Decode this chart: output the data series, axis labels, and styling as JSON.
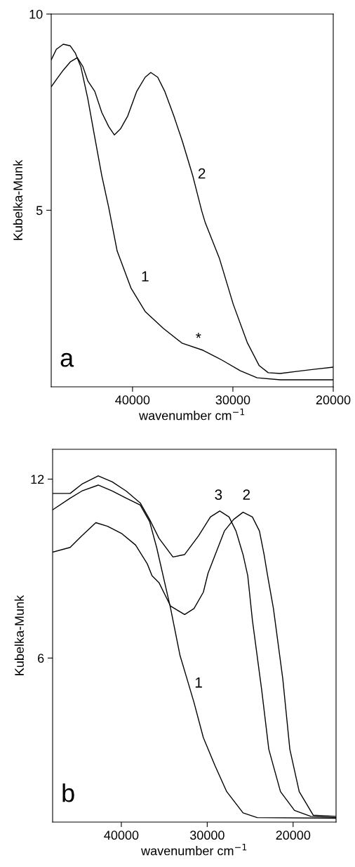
{
  "chart_data": [
    {
      "type": "line",
      "xlabel": "wavenumber cm$^{−1}$",
      "ylabel": "Kubelka-Munk",
      "xlim": [
        48100,
        20000
      ],
      "ylim": [
        0.5,
        10
      ],
      "xticks": [
        40000,
        30000,
        20000
      ],
      "yticks": [
        5,
        10
      ],
      "grid": false,
      "legend": false,
      "series": [
        {
          "name": "1",
          "color": "#000000",
          "x": [
            48080,
            47590,
            46900,
            46200,
            45710,
            45150,
            44460,
            43760,
            43060,
            42370,
            41530,
            40140,
            38740,
            36930,
            35050,
            32960,
            31080,
            29260,
            27590,
            25290,
            20000
          ],
          "values": [
            8.84,
            9.1,
            9.23,
            9.19,
            9.01,
            8.66,
            7.85,
            6.86,
            5.88,
            5.07,
            3.96,
            3.01,
            2.42,
            1.99,
            1.61,
            1.43,
            1.18,
            0.91,
            0.73,
            0.68,
            0.68
          ]
        },
        {
          "name": "2",
          "color": "#000000",
          "x": [
            48080,
            47590,
            46900,
            46200,
            45500,
            44940,
            44460,
            43760,
            43060,
            42370,
            41810,
            41180,
            40480,
            39580,
            38740,
            38180,
            37490,
            36790,
            35880,
            35050,
            34000,
            33100,
            32750,
            31350,
            29960,
            28570,
            27380,
            26480,
            25290,
            23410,
            21810,
            20000
          ],
          "values": [
            8.15,
            8.33,
            8.57,
            8.78,
            8.89,
            8.66,
            8.3,
            8.03,
            7.49,
            7.13,
            6.92,
            7.08,
            7.4,
            8.03,
            8.39,
            8.51,
            8.39,
            8.03,
            7.4,
            6.77,
            5.88,
            4.98,
            4.68,
            3.78,
            2.6,
            1.63,
            1.04,
            0.86,
            0.84,
            0.9,
            0.95,
            1.0
          ]
        }
      ],
      "annotations": [
        "*",
        "a"
      ]
    },
    {
      "type": "line",
      "xlabel": "wavenumber cm$^{−1}$",
      "ylabel": "Kubelka-Munk",
      "xlim": [
        48000,
        15000
      ],
      "ylim": [
        0.5,
        13
      ],
      "xticks": [
        40000,
        30000,
        20000
      ],
      "yticks": [
        6,
        12
      ],
      "grid": false,
      "legend": false,
      "series": [
        {
          "name": "1",
          "color": "#000000",
          "x": [
            48000,
            45960,
            44600,
            42690,
            41060,
            39430,
            37800,
            36710,
            35890,
            34260,
            33170,
            32350,
            31540,
            30450,
            29090,
            27730,
            25830,
            24190,
            15000
          ],
          "values": [
            10.97,
            11.36,
            11.6,
            11.8,
            11.6,
            11.36,
            11.13,
            10.58,
            9.71,
            7.66,
            6.09,
            5.3,
            4.51,
            3.33,
            2.39,
            1.52,
            0.81,
            0.65,
            0.63
          ]
        },
        {
          "name": "2",
          "color": "#000000",
          "x": [
            48000,
            45960,
            44600,
            42970,
            41610,
            39980,
            38340,
            36980,
            36430,
            35620,
            34260,
            32630,
            31540,
            30450,
            29910,
            28000,
            26920,
            25830,
            24740,
            23920,
            23380,
            22970,
            22290,
            21200,
            20380,
            19290,
            17660,
            15000
          ],
          "values": [
            9.55,
            9.71,
            10.1,
            10.54,
            10.42,
            10.18,
            9.79,
            9.16,
            8.76,
            8.53,
            7.74,
            7.46,
            7.66,
            8.21,
            8.84,
            10.26,
            10.65,
            10.89,
            10.73,
            10.26,
            9.47,
            8.76,
            7.66,
            5.3,
            2.94,
            1.52,
            0.73,
            0.69
          ]
        },
        {
          "name": "3",
          "color": "#000000",
          "x": [
            48000,
            45960,
            44600,
            42690,
            41060,
            39430,
            37800,
            36710,
            35620,
            33990,
            32630,
            31000,
            29630,
            28540,
            27460,
            26650,
            25830,
            25280,
            24740,
            23650,
            22830,
            21470,
            19840,
            17940,
            15000
          ],
          "values": [
            11.52,
            11.52,
            11.83,
            12.11,
            11.91,
            11.6,
            11.2,
            10.65,
            10.02,
            9.39,
            9.47,
            10.1,
            10.73,
            10.93,
            10.73,
            10.26,
            9.47,
            8.76,
            7.27,
            4.91,
            2.94,
            1.52,
            0.89,
            0.69,
            0.65
          ]
        }
      ],
      "annotations": [
        "b"
      ]
    }
  ]
}
